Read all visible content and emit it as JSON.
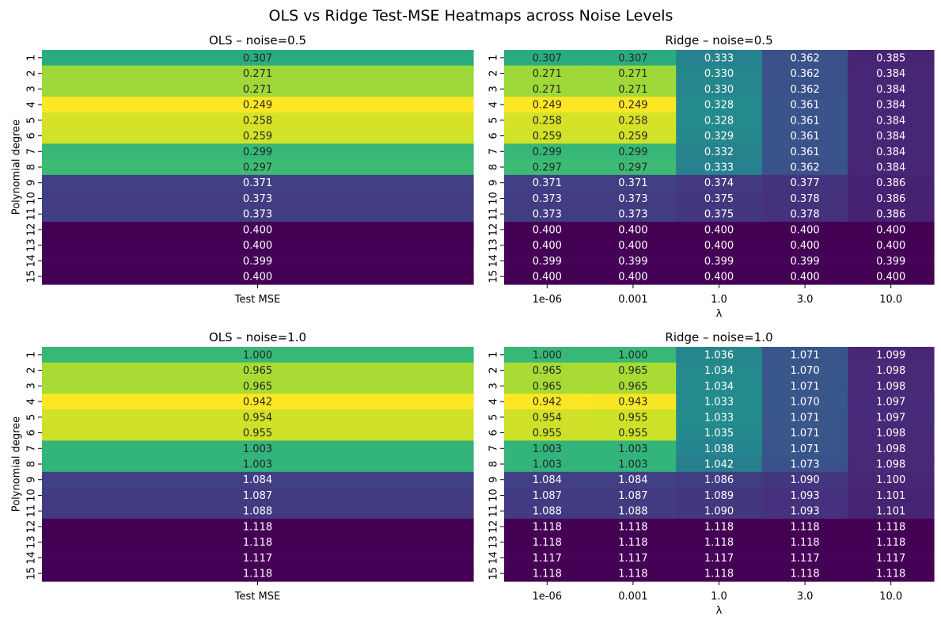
{
  "title": "OLS vs Ridge Test-MSE Heatmaps across Noise Levels",
  "colormap": {
    "name": "viridis",
    "stops": [
      "#440154",
      "#482878",
      "#3e4989",
      "#31688e",
      "#26828e",
      "#1f9e89",
      "#35b779",
      "#6ece58",
      "#b5de2b",
      "#fde725"
    ]
  },
  "chart_data": [
    {
      "type": "heatmap",
      "title": "OLS – noise=0.5",
      "ylabel": "Polynomial degree",
      "xlabel": "",
      "y_categories": [
        "1",
        "2",
        "3",
        "4",
        "5",
        "6",
        "7",
        "8",
        "9",
        "10",
        "11",
        "12",
        "13",
        "14",
        "15"
      ],
      "x_categories": [
        "Test MSE"
      ],
      "values": [
        [
          0.307
        ],
        [
          0.271
        ],
        [
          0.271
        ],
        [
          0.249
        ],
        [
          0.258
        ],
        [
          0.259
        ],
        [
          0.299
        ],
        [
          0.297
        ],
        [
          0.371
        ],
        [
          0.373
        ],
        [
          0.373
        ],
        [
          0.4
        ],
        [
          0.4
        ],
        [
          0.399
        ],
        [
          0.4
        ]
      ]
    },
    {
      "type": "heatmap",
      "title": "Ridge – noise=0.5",
      "ylabel": "",
      "xlabel": "λ",
      "y_categories": [
        "1",
        "2",
        "3",
        "4",
        "5",
        "6",
        "7",
        "8",
        "9",
        "10",
        "11",
        "12",
        "13",
        "14",
        "15"
      ],
      "x_categories": [
        "1e-06",
        "0.001",
        "1.0",
        "3.0",
        "10.0"
      ],
      "values": [
        [
          0.307,
          0.307,
          0.333,
          0.362,
          0.385
        ],
        [
          0.271,
          0.271,
          0.33,
          0.362,
          0.384
        ],
        [
          0.271,
          0.271,
          0.33,
          0.362,
          0.384
        ],
        [
          0.249,
          0.249,
          0.328,
          0.361,
          0.384
        ],
        [
          0.258,
          0.258,
          0.328,
          0.361,
          0.384
        ],
        [
          0.259,
          0.259,
          0.329,
          0.361,
          0.384
        ],
        [
          0.299,
          0.299,
          0.332,
          0.361,
          0.384
        ],
        [
          0.297,
          0.297,
          0.333,
          0.362,
          0.384
        ],
        [
          0.371,
          0.371,
          0.374,
          0.377,
          0.386
        ],
        [
          0.373,
          0.373,
          0.375,
          0.378,
          0.386
        ],
        [
          0.373,
          0.373,
          0.375,
          0.378,
          0.386
        ],
        [
          0.4,
          0.4,
          0.4,
          0.4,
          0.4
        ],
        [
          0.4,
          0.4,
          0.4,
          0.4,
          0.4
        ],
        [
          0.399,
          0.399,
          0.399,
          0.399,
          0.399
        ],
        [
          0.4,
          0.4,
          0.4,
          0.4,
          0.4
        ]
      ]
    },
    {
      "type": "heatmap",
      "title": "OLS – noise=1.0",
      "ylabel": "Polynomial degree",
      "xlabel": "",
      "y_categories": [
        "1",
        "2",
        "3",
        "4",
        "5",
        "6",
        "7",
        "8",
        "9",
        "10",
        "11",
        "12",
        "13",
        "14",
        "15"
      ],
      "x_categories": [
        "Test MSE"
      ],
      "values": [
        [
          1.0
        ],
        [
          0.965
        ],
        [
          0.965
        ],
        [
          0.942
        ],
        [
          0.954
        ],
        [
          0.955
        ],
        [
          1.003
        ],
        [
          1.003
        ],
        [
          1.084
        ],
        [
          1.087
        ],
        [
          1.088
        ],
        [
          1.118
        ],
        [
          1.118
        ],
        [
          1.117
        ],
        [
          1.118
        ]
      ]
    },
    {
      "type": "heatmap",
      "title": "Ridge – noise=1.0",
      "ylabel": "",
      "xlabel": "λ",
      "y_categories": [
        "1",
        "2",
        "3",
        "4",
        "5",
        "6",
        "7",
        "8",
        "9",
        "10",
        "11",
        "12",
        "13",
        "14",
        "15"
      ],
      "x_categories": [
        "1e-06",
        "0.001",
        "1.0",
        "3.0",
        "10.0"
      ],
      "values": [
        [
          1.0,
          1.0,
          1.036,
          1.071,
          1.099
        ],
        [
          0.965,
          0.965,
          1.034,
          1.07,
          1.098
        ],
        [
          0.965,
          0.965,
          1.034,
          1.071,
          1.098
        ],
        [
          0.942,
          0.943,
          1.033,
          1.07,
          1.097
        ],
        [
          0.954,
          0.955,
          1.033,
          1.071,
          1.097
        ],
        [
          0.955,
          0.955,
          1.035,
          1.071,
          1.098
        ],
        [
          1.003,
          1.003,
          1.038,
          1.071,
          1.098
        ],
        [
          1.003,
          1.003,
          1.042,
          1.073,
          1.098
        ],
        [
          1.084,
          1.084,
          1.086,
          1.09,
          1.1
        ],
        [
          1.087,
          1.087,
          1.089,
          1.093,
          1.101
        ],
        [
          1.088,
          1.088,
          1.09,
          1.093,
          1.101
        ],
        [
          1.118,
          1.118,
          1.118,
          1.118,
          1.118
        ],
        [
          1.118,
          1.118,
          1.118,
          1.118,
          1.118
        ],
        [
          1.117,
          1.117,
          1.117,
          1.117,
          1.117
        ],
        [
          1.118,
          1.118,
          1.118,
          1.118,
          1.118
        ]
      ]
    }
  ]
}
